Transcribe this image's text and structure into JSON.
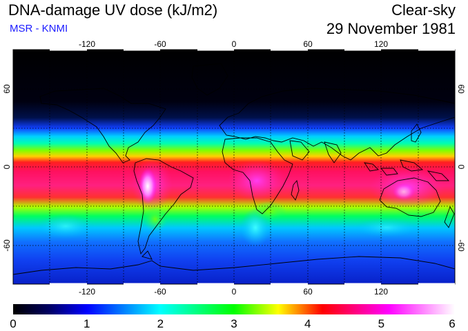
{
  "header": {
    "title": "DNA-damage UV dose (kJ/m2)",
    "credit": "MSR - KNMI",
    "condition": "Clear-sky",
    "date": "29 November 1981"
  },
  "map": {
    "projection": "equirectangular",
    "lon_range": [
      -180,
      180
    ],
    "lat_range": [
      -90,
      90
    ],
    "top_lon_ticks": [
      "-120",
      "-60",
      "0",
      "60",
      "120"
    ],
    "bottom_lon_ticks": [
      "-120",
      "-60",
      "0",
      "60",
      "120"
    ],
    "left_lat_ticks": [
      "60",
      "0",
      "-60"
    ],
    "right_lat_ticks": [
      "60",
      "0",
      "-60"
    ],
    "gridlines": "dotted every 30 degrees",
    "coastlines": true
  },
  "colorbar": {
    "min": 0,
    "max": 6,
    "labels": [
      "0",
      "1",
      "2",
      "3",
      "4",
      "5",
      "6"
    ],
    "colors": [
      "#000000",
      "#0000ff",
      "#00ffff",
      "#00ff00",
      "#ffff00",
      "#ff0000",
      "#ff00ff",
      "#ffffff"
    ]
  }
}
